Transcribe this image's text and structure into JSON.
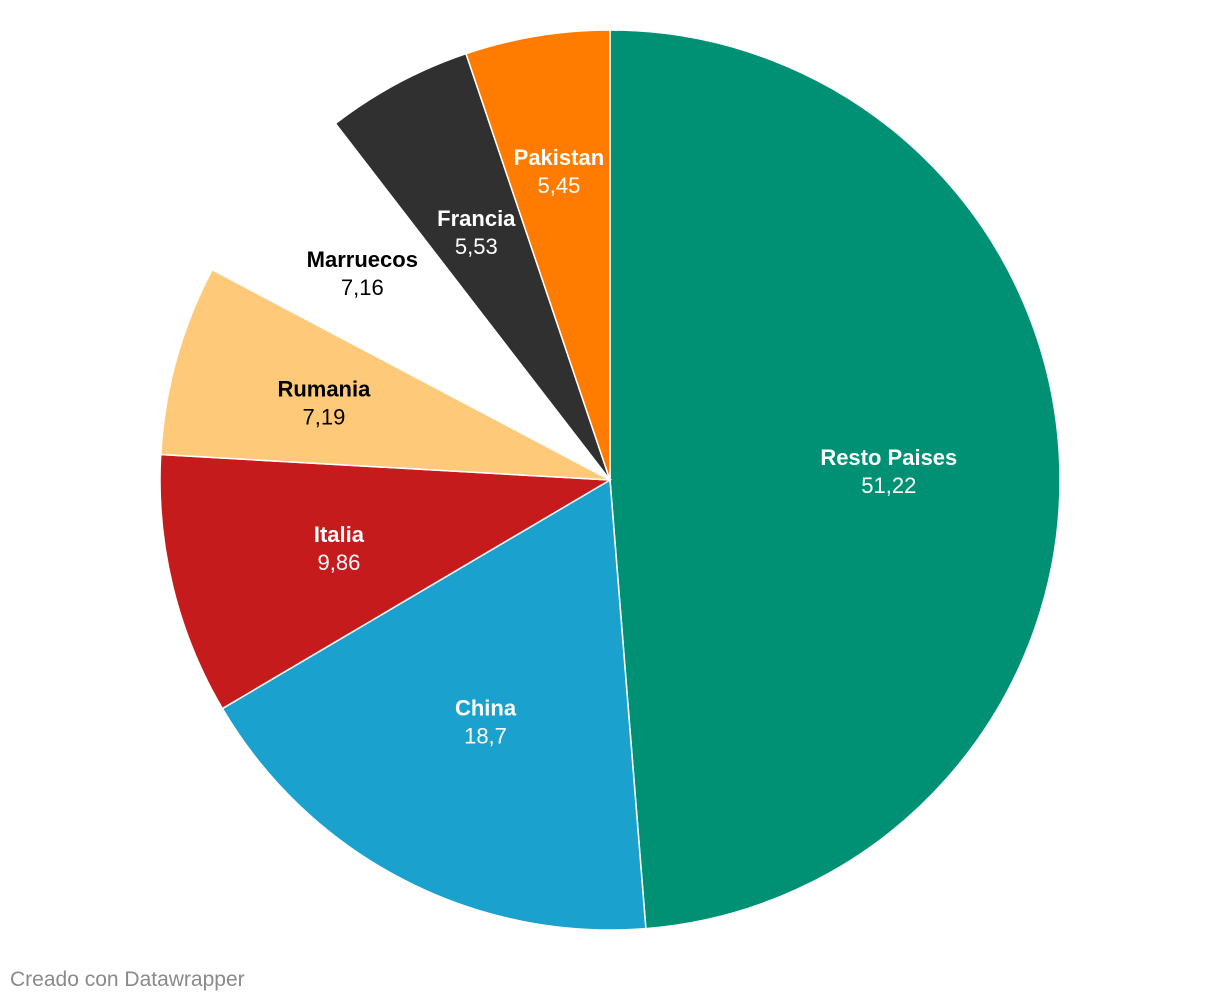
{
  "chart_data": {
    "type": "pie",
    "slices": [
      {
        "label": "Resto Paises",
        "value": 51.22,
        "value_text": "51,22",
        "color": "#009175",
        "text_color": "#ffffff"
      },
      {
        "label": "China",
        "value": 18.7,
        "value_text": "18,7",
        "color": "#1aa1cd",
        "text_color": "#ffffff"
      },
      {
        "label": "Italia",
        "value": 9.86,
        "value_text": "9,86",
        "color": "#c61b1c",
        "text_color": "#ffffff"
      },
      {
        "label": "Rumania",
        "value": 7.19,
        "value_text": "7,19",
        "color": "#fec979",
        "text_color": "#000000"
      },
      {
        "label": "Marruecos",
        "value": 7.16,
        "value_text": "7,16",
        "color": "#ffffff",
        "text_color": "#000000"
      },
      {
        "label": "Francia",
        "value": 5.53,
        "value_text": "5,53",
        "color": "#303030",
        "text_color": "#ffffff"
      },
      {
        "label": "Pakistan",
        "value": 5.45,
        "value_text": "5,45",
        "color": "#ff7c00",
        "text_color": "#ffffff"
      }
    ],
    "start": "top",
    "direction": "clockwise"
  },
  "footer": {
    "credit": "Creado con Datawrapper"
  }
}
